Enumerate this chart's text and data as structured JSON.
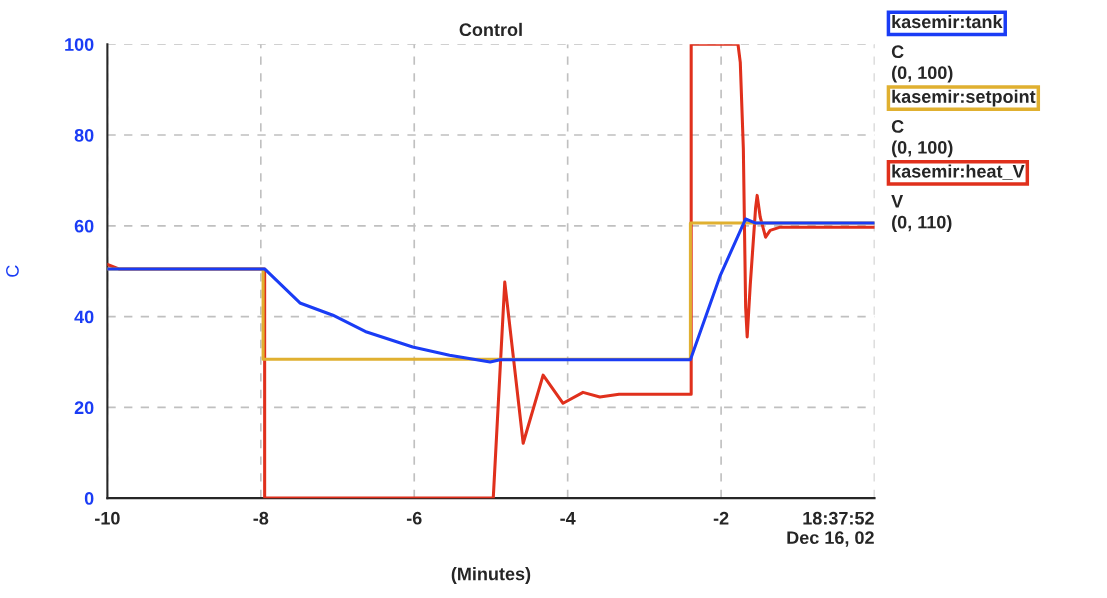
{
  "chart_data": {
    "type": "line",
    "title": "Control",
    "xlabel": "(Minutes)",
    "ylabel": "C",
    "xlim": [
      -10,
      0
    ],
    "xticks": [
      -10,
      -8,
      -6,
      -4,
      -2,
      {
        "value": 0,
        "label": "18:37:52\nDec 16, 02"
      }
    ],
    "ylim": [
      0,
      100
    ],
    "yticks": [
      0,
      20,
      40,
      60,
      80,
      100
    ],
    "grid": true,
    "legend": "right",
    "series": [
      {
        "name": "kasemir:tank",
        "color": "#1a3cf5",
        "x": [
          -10,
          -7.95,
          -7.49,
          -7.06,
          -6.62,
          -6.02,
          -5.54,
          -5.01,
          -4.88,
          -2.4,
          -2.01,
          -1.68,
          -1.55,
          0
        ],
        "values": [
          50.5,
          50.5,
          43,
          40.3,
          36.6,
          33.3,
          31.5,
          30,
          30.5,
          30.5,
          49.1,
          61.5,
          60.6,
          60.6
        ]
      },
      {
        "name": "kasemir:setpoint",
        "type": "step",
        "color": "#e0b030",
        "x": [
          -10,
          -7.97,
          -2.4,
          0
        ],
        "values": [
          50.5,
          30.6,
          60.6,
          60.6
        ]
      },
      {
        "name": "kasemir:heat_V",
        "color": "#e0301c",
        "x": [
          -10,
          -9.85,
          -7.95,
          -7.95,
          -4.97,
          -4.82,
          -4.58,
          -4.32,
          -4.06,
          -3.8,
          -3.58,
          -3.33,
          -2.39,
          -2.39,
          -1.78,
          -1.75,
          -1.71,
          -1.68,
          -1.66,
          -1.62,
          -1.55,
          -1.53,
          -1.49,
          -1.42,
          -1.36,
          -1.23,
          0
        ],
        "values": [
          51.5,
          50.5,
          50.5,
          0,
          0,
          47.6,
          12.1,
          27.1,
          20.9,
          23.3,
          22.3,
          22.9,
          22.9,
          100,
          100,
          96,
          77,
          42,
          35.5,
          47,
          64,
          66.7,
          61.9,
          57.5,
          59,
          59.7,
          59.7
        ]
      }
    ],
    "annotations": [
      "C",
      "(0, 100)",
      "C",
      "(0, 100)",
      "V",
      "(0, 110)"
    ]
  }
}
